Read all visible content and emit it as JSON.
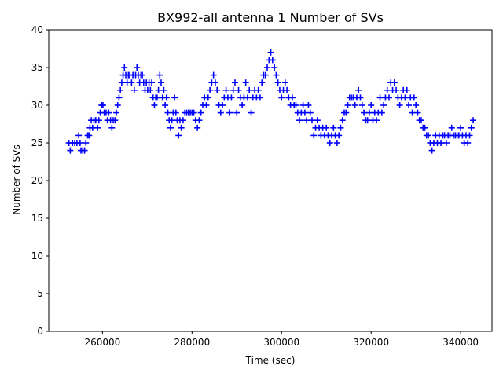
{
  "chart_data": {
    "type": "scatter",
    "title": "BX992-all antenna 1 Number of SVs",
    "xlabel": "Time (sec)",
    "ylabel": "Number of SVs",
    "xlim": [
      248000,
      347000
    ],
    "ylim": [
      0,
      40
    ],
    "x_ticks": [
      260000,
      280000,
      300000,
      320000,
      340000
    ],
    "x_tick_labels": [
      "260000",
      "280000",
      "300000",
      "320000",
      "340000"
    ],
    "y_ticks": [
      0,
      5,
      10,
      15,
      20,
      25,
      30,
      35,
      40
    ],
    "y_tick_labels": [
      "0",
      "5",
      "10",
      "15",
      "20",
      "25",
      "30",
      "35",
      "40"
    ],
    "grid": false,
    "marker": "+",
    "color": "#0000ff",
    "series": [
      {
        "points": [
          [
            252500,
            25
          ],
          [
            252800,
            24
          ],
          [
            253300,
            25
          ],
          [
            253800,
            25
          ],
          [
            254300,
            25
          ],
          [
            254700,
            26
          ],
          [
            255000,
            25
          ],
          [
            255200,
            24
          ],
          [
            255600,
            24
          ],
          [
            256000,
            24
          ],
          [
            256300,
            25
          ],
          [
            256700,
            26
          ],
          [
            257000,
            26
          ],
          [
            257200,
            27
          ],
          [
            257500,
            28
          ],
          [
            257800,
            27
          ],
          [
            258100,
            28
          ],
          [
            258500,
            28
          ],
          [
            258900,
            27
          ],
          [
            259200,
            28
          ],
          [
            259500,
            29
          ],
          [
            259800,
            30
          ],
          [
            260100,
            30
          ],
          [
            260400,
            29
          ],
          [
            260800,
            29
          ],
          [
            261100,
            28
          ],
          [
            261400,
            29
          ],
          [
            261800,
            28
          ],
          [
            262100,
            27
          ],
          [
            262400,
            28
          ],
          [
            262800,
            28
          ],
          [
            263100,
            29
          ],
          [
            263400,
            30
          ],
          [
            263700,
            31
          ],
          [
            264000,
            32
          ],
          [
            264300,
            33
          ],
          [
            264600,
            34
          ],
          [
            264900,
            35
          ],
          [
            265200,
            34
          ],
          [
            265500,
            33
          ],
          [
            265800,
            34
          ],
          [
            266100,
            34
          ],
          [
            266500,
            33
          ],
          [
            266800,
            34
          ],
          [
            267100,
            32
          ],
          [
            267400,
            34
          ],
          [
            267700,
            35
          ],
          [
            268000,
            34
          ],
          [
            268300,
            33
          ],
          [
            268600,
            34
          ],
          [
            268900,
            34
          ],
          [
            269200,
            33
          ],
          [
            269500,
            32
          ],
          [
            269800,
            33
          ],
          [
            270100,
            32
          ],
          [
            270400,
            33
          ],
          [
            270700,
            32
          ],
          [
            271000,
            33
          ],
          [
            271300,
            31
          ],
          [
            271600,
            30
          ],
          [
            271900,
            31
          ],
          [
            272200,
            31
          ],
          [
            272500,
            32
          ],
          [
            272800,
            34
          ],
          [
            273100,
            33
          ],
          [
            273400,
            31
          ],
          [
            273700,
            32
          ],
          [
            274000,
            30
          ],
          [
            274300,
            31
          ],
          [
            274600,
            29
          ],
          [
            274900,
            28
          ],
          [
            275200,
            27
          ],
          [
            275500,
            28
          ],
          [
            275800,
            29
          ],
          [
            276100,
            31
          ],
          [
            276400,
            29
          ],
          [
            276700,
            28
          ],
          [
            277000,
            26
          ],
          [
            277300,
            28
          ],
          [
            277600,
            27
          ],
          [
            278000,
            28
          ],
          [
            278400,
            29
          ],
          [
            278800,
            29
          ],
          [
            279200,
            29
          ],
          [
            279600,
            29
          ],
          [
            280000,
            29
          ],
          [
            280400,
            29
          ],
          [
            280800,
            28
          ],
          [
            281200,
            27
          ],
          [
            281600,
            28
          ],
          [
            282000,
            29
          ],
          [
            282400,
            30
          ],
          [
            282800,
            31
          ],
          [
            283200,
            30
          ],
          [
            283600,
            31
          ],
          [
            284000,
            32
          ],
          [
            284400,
            33
          ],
          [
            284800,
            34
          ],
          [
            285200,
            33
          ],
          [
            285600,
            32
          ],
          [
            286000,
            30
          ],
          [
            286400,
            29
          ],
          [
            286800,
            30
          ],
          [
            287200,
            31
          ],
          [
            287600,
            32
          ],
          [
            288000,
            31
          ],
          [
            288400,
            29
          ],
          [
            288800,
            31
          ],
          [
            289200,
            32
          ],
          [
            289600,
            33
          ],
          [
            290000,
            29
          ],
          [
            290400,
            32
          ],
          [
            290800,
            31
          ],
          [
            291200,
            30
          ],
          [
            291600,
            31
          ],
          [
            292000,
            33
          ],
          [
            292400,
            31
          ],
          [
            292800,
            32
          ],
          [
            293200,
            29
          ],
          [
            293600,
            31
          ],
          [
            294000,
            32
          ],
          [
            294400,
            31
          ],
          [
            294800,
            32
          ],
          [
            295200,
            31
          ],
          [
            295600,
            33
          ],
          [
            296000,
            34
          ],
          [
            296400,
            34
          ],
          [
            296800,
            35
          ],
          [
            297200,
            36
          ],
          [
            297600,
            37
          ],
          [
            298000,
            36
          ],
          [
            298400,
            35
          ],
          [
            298800,
            34
          ],
          [
            299200,
            33
          ],
          [
            299600,
            32
          ],
          [
            300000,
            31
          ],
          [
            300400,
            32
          ],
          [
            300800,
            33
          ],
          [
            301200,
            32
          ],
          [
            301600,
            31
          ],
          [
            302000,
            30
          ],
          [
            302400,
            31
          ],
          [
            302800,
            30
          ],
          [
            303200,
            30
          ],
          [
            303600,
            29
          ],
          [
            304000,
            28
          ],
          [
            304400,
            29
          ],
          [
            304800,
            30
          ],
          [
            305200,
            29
          ],
          [
            305600,
            28
          ],
          [
            306000,
            30
          ],
          [
            306400,
            29
          ],
          [
            306800,
            28
          ],
          [
            307200,
            26
          ],
          [
            307600,
            27
          ],
          [
            308000,
            28
          ],
          [
            308400,
            27
          ],
          [
            308800,
            26
          ],
          [
            309200,
            27
          ],
          [
            309600,
            26
          ],
          [
            310000,
            27
          ],
          [
            310400,
            26
          ],
          [
            310800,
            25
          ],
          [
            311200,
            26
          ],
          [
            311600,
            27
          ],
          [
            312000,
            26
          ],
          [
            312400,
            25
          ],
          [
            312800,
            26
          ],
          [
            313200,
            27
          ],
          [
            313600,
            28
          ],
          [
            314000,
            29
          ],
          [
            314400,
            29
          ],
          [
            314800,
            30
          ],
          [
            315200,
            31
          ],
          [
            315600,
            31
          ],
          [
            316000,
            31
          ],
          [
            316400,
            30
          ],
          [
            316800,
            31
          ],
          [
            317200,
            32
          ],
          [
            317600,
            31
          ],
          [
            318000,
            30
          ],
          [
            318400,
            29
          ],
          [
            318800,
            28
          ],
          [
            319200,
            28
          ],
          [
            319600,
            29
          ],
          [
            320000,
            30
          ],
          [
            320400,
            28
          ],
          [
            320800,
            29
          ],
          [
            321200,
            28
          ],
          [
            321600,
            29
          ],
          [
            322000,
            31
          ],
          [
            322400,
            29
          ],
          [
            322800,
            30
          ],
          [
            323200,
            31
          ],
          [
            323600,
            32
          ],
          [
            324000,
            31
          ],
          [
            324400,
            33
          ],
          [
            324800,
            32
          ],
          [
            325200,
            33
          ],
          [
            325600,
            32
          ],
          [
            326000,
            31
          ],
          [
            326400,
            30
          ],
          [
            326800,
            31
          ],
          [
            327200,
            32
          ],
          [
            327600,
            31
          ],
          [
            328000,
            32
          ],
          [
            328400,
            30
          ],
          [
            328800,
            31
          ],
          [
            329200,
            29
          ],
          [
            329600,
            31
          ],
          [
            330000,
            30
          ],
          [
            330400,
            29
          ],
          [
            330800,
            28
          ],
          [
            331200,
            28
          ],
          [
            331600,
            27
          ],
          [
            332000,
            27
          ],
          [
            332400,
            26
          ],
          [
            332800,
            26
          ],
          [
            333200,
            25
          ],
          [
            333600,
            24
          ],
          [
            334000,
            25
          ],
          [
            334400,
            26
          ],
          [
            334800,
            25
          ],
          [
            335200,
            26
          ],
          [
            335600,
            25
          ],
          [
            336000,
            26
          ],
          [
            336400,
            26
          ],
          [
            336800,
            25
          ],
          [
            337200,
            26
          ],
          [
            337600,
            26
          ],
          [
            338000,
            27
          ],
          [
            338400,
            26
          ],
          [
            338800,
            26
          ],
          [
            339200,
            26
          ],
          [
            339600,
            26
          ],
          [
            340000,
            27
          ],
          [
            340400,
            26
          ],
          [
            340800,
            25
          ],
          [
            341200,
            26
          ],
          [
            341600,
            25
          ],
          [
            342000,
            26
          ],
          [
            342400,
            27
          ],
          [
            342800,
            28
          ]
        ]
      }
    ]
  }
}
